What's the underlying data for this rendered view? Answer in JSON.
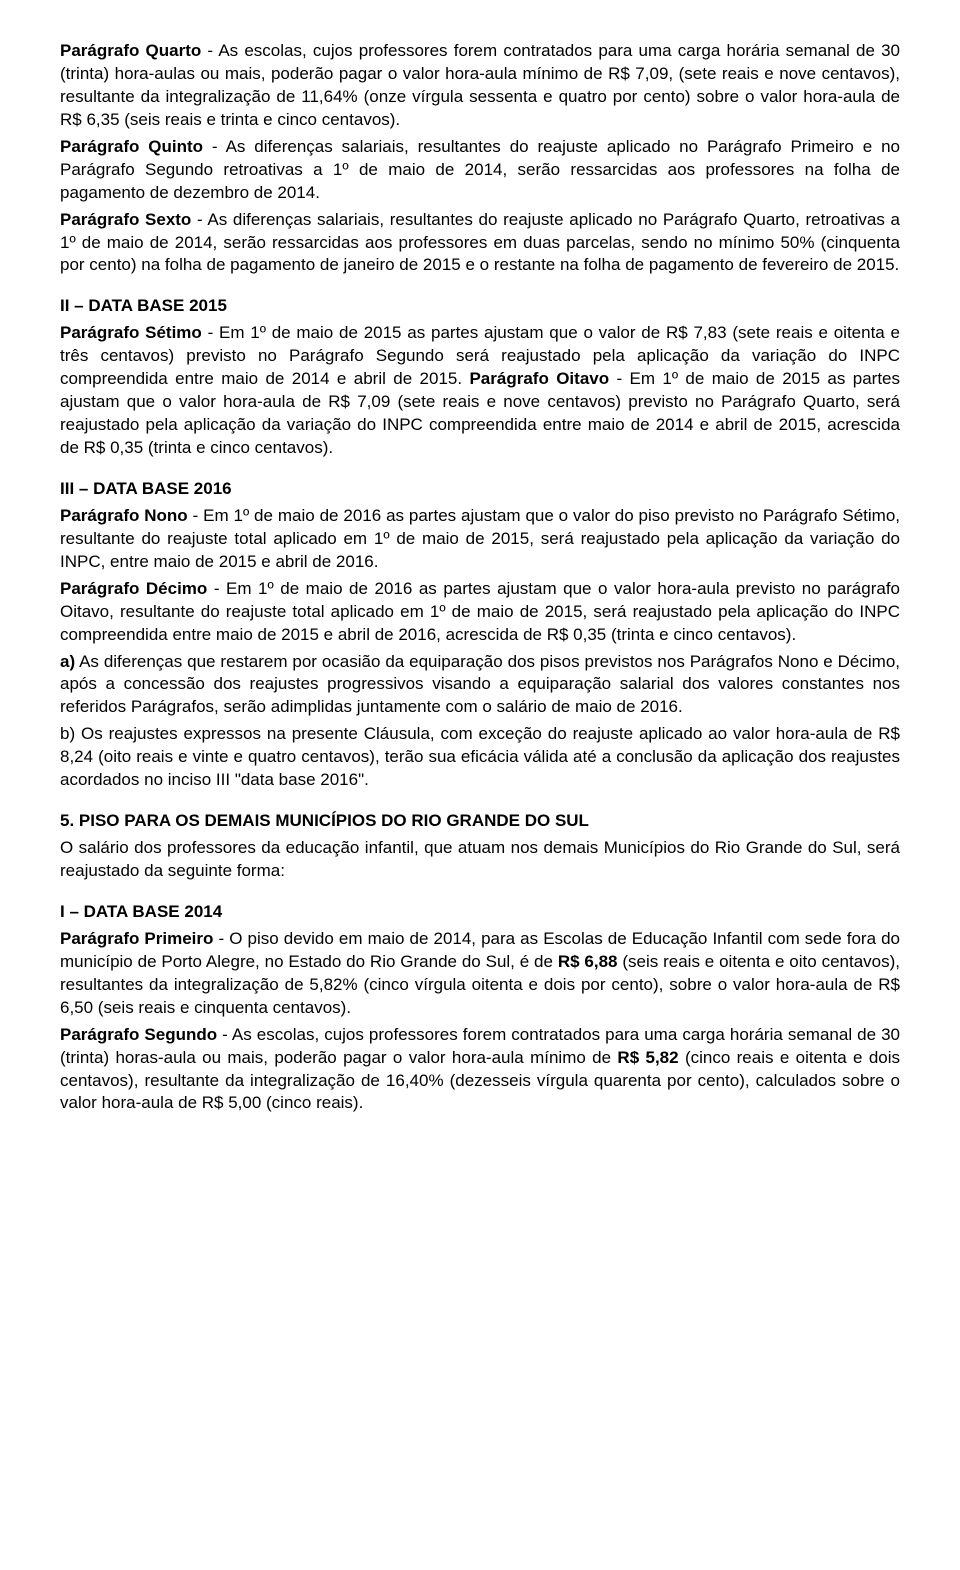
{
  "p1": {
    "lead": "Parágrafo Quarto",
    "rest": " - As escolas, cujos professores forem contratados para uma carga horária semanal de 30 (trinta) hora-aulas ou mais, poderão pagar o valor hora-aula mínimo de R$ 7,09, (sete reais e nove centavos), resultante da integralização de 11,64% (onze vírgula sessenta e quatro por cento) sobre o valor hora-aula de R$ 6,35 (seis reais e trinta e cinco centavos)."
  },
  "p2": {
    "lead": "Parágrafo Quinto",
    "rest": " - As diferenças salariais, resultantes do reajuste aplicado no Parágrafo Primeiro e no Parágrafo Segundo retroativas a 1º de maio de 2014, serão ressarcidas aos professores na folha de pagamento de dezembro de 2014."
  },
  "p3": {
    "lead": "Parágrafo Sexto",
    "rest": " - As diferenças salariais, resultantes do reajuste aplicado no Parágrafo Quarto, retroativas a 1º de maio de 2014, serão ressarcidas aos professores em duas parcelas, sendo no mínimo 50% (cinquenta por cento) na folha de pagamento de janeiro de 2015 e o restante na folha de pagamento de fevereiro de 2015."
  },
  "s2_head": "II – DATA BASE 2015",
  "p4": {
    "lead": "Parágrafo Sétimo",
    "rest": " - Em 1º de maio de 2015 as partes ajustam que o valor de R$ 7,83 (sete reais e oitenta e três centavos) previsto no Parágrafo Segundo será reajustado pela aplicação da variação do INPC compreendida entre maio de 2014 e abril de 2015."
  },
  "p4b": {
    "lead": " Parágrafo Oitavo",
    "rest": " - Em 1º de maio de 2015 as partes ajustam que o valor hora-aula de R$ 7,09 (sete reais e nove centavos) previsto no Parágrafo Quarto, será reajustado pela aplicação da variação do INPC compreendida entre maio de 2014 e abril de 2015, acrescida de R$ 0,35 (trinta e cinco centavos)."
  },
  "s3_head": "III – DATA BASE 2016",
  "p5": {
    "lead": "Parágrafo Nono",
    "rest": " - Em 1º de maio de 2016 as partes ajustam que o valor do piso previsto no Parágrafo Sétimo, resultante do reajuste total aplicado em 1º de maio de 2015, será reajustado pela aplicação da variação do INPC, entre maio de 2015 e abril de 2016."
  },
  "p6": {
    "lead": "Parágrafo Décimo",
    "rest": " - Em 1º de maio de 2016 as partes ajustam que o valor hora-aula previsto no parágrafo Oitavo, resultante do reajuste total aplicado em 1º de maio de 2015, será reajustado pela aplicação do INPC compreendida entre maio de 2015 e abril de 2016, acrescida de R$ 0,35 (trinta e cinco centavos)."
  },
  "p7": {
    "lead": "a)",
    "rest": " As diferenças que restarem por ocasião da equiparação dos pisos previstos nos Parágrafos Nono e Décimo, após a concessão dos reajustes progressivos visando a equiparação salarial dos valores constantes nos referidos Parágrafos, serão adimplidas juntamente com o salário de maio de 2016."
  },
  "p8": {
    "text": "b) Os reajustes expressos na presente Cláusula, com exceção do reajuste aplicado ao valor hora-aula de R$ 8,24 (oito reais e vinte e quatro centavos), terão sua eficácia válida até a conclusão da aplicação dos reajustes acordados no inciso III \"data base 2016\"."
  },
  "s5_head": "5. PISO PARA OS DEMAIS MUNICÍPIOS DO RIO GRANDE DO SUL",
  "p9": {
    "text": "O salário dos professores da educação infantil, que atuam nos demais Municípios do Rio Grande do Sul, será reajustado da seguinte forma:"
  },
  "s1b_head": "I – DATA BASE 2014",
  "p10": {
    "lead": "Parágrafo Primeiro",
    "mid1": " - O piso devido em maio de 2014, para as Escolas de Educação Infantil com sede fora do município de Porto Alegre, no Estado do Rio Grande do Sul, é de ",
    "bold1": "R$ 6,88",
    "rest": " (seis reais e oitenta e oito centavos), resultantes da integralização de 5,82% (cinco vírgula oitenta e dois por cento), sobre o valor hora-aula de R$ 6,50 (seis reais e cinquenta centavos)."
  },
  "p11": {
    "lead": "Parágrafo Segundo",
    "mid1": " - As escolas, cujos professores forem contratados para uma carga horária semanal de 30 (trinta) horas-aula ou mais, poderão pagar o valor hora-aula mínimo de ",
    "bold1": "R$ 5,82",
    "rest": " (cinco reais e oitenta e dois centavos), resultante da integralização de 16,40% (dezesseis vírgula quarenta por cento), calculados sobre o valor hora-aula de R$ 5,00 (cinco reais)."
  }
}
